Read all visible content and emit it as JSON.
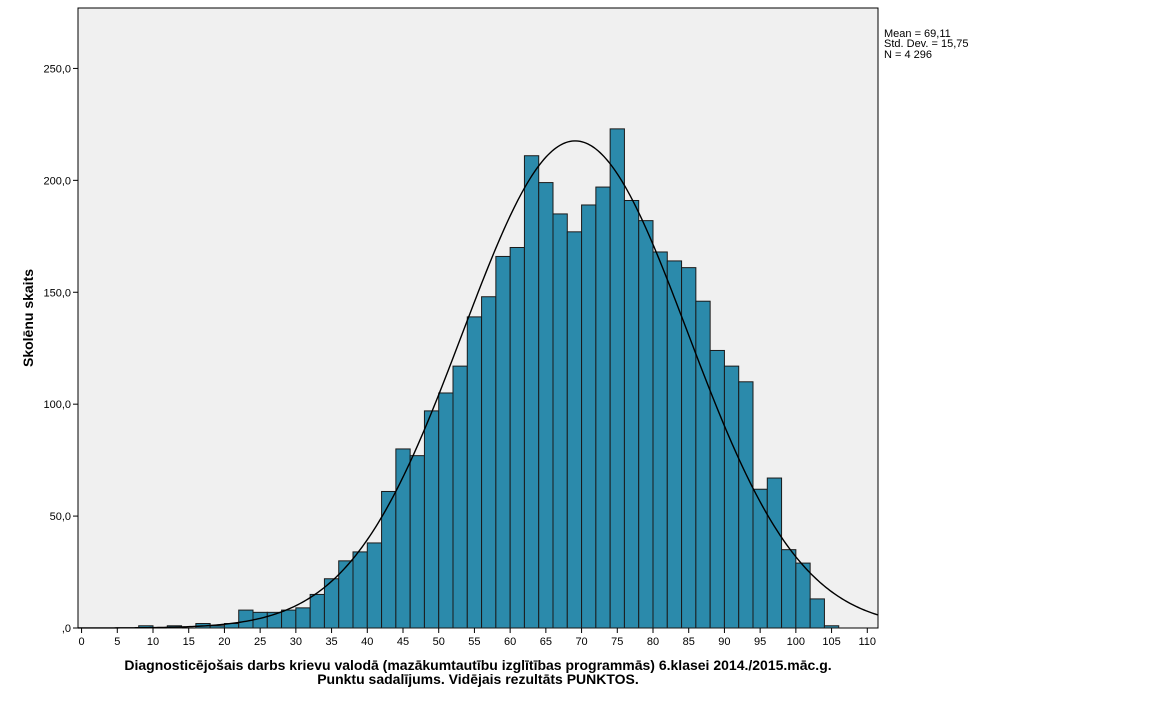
{
  "chart_data": {
    "type": "bar",
    "subtype": "histogram",
    "title": "",
    "xlabel_line1": "Diagnosticējošais darbs krievu valodā (mazākumtautību izglītības programmās) 6.klasei 2014./2015.māc.g.",
    "xlabel_line2": "Punktu sadalījums. Vidējais rezultāts PUNKTOS.",
    "ylabel": "Skolēnu skaits",
    "xlim": [
      -0.5,
      111.5
    ],
    "ylim": [
      0,
      277
    ],
    "grid": false,
    "x_ticks": [
      0,
      5,
      10,
      15,
      20,
      25,
      30,
      35,
      40,
      45,
      50,
      55,
      60,
      65,
      70,
      75,
      80,
      85,
      90,
      95,
      100,
      105,
      110
    ],
    "x_tick_labels": [
      "0",
      "5",
      "10",
      "15",
      "20",
      "25",
      "30",
      "35",
      "40",
      "45",
      "50",
      "55",
      "60",
      "65",
      "70",
      "75",
      "80",
      "85",
      "90",
      "95",
      "100",
      "105",
      "110"
    ],
    "y_ticks": [
      0,
      50,
      100,
      150,
      200,
      250
    ],
    "y_tick_labels": [
      ",0",
      "50,0",
      "100,0",
      "150,0",
      "200,0",
      "250,0"
    ],
    "bin_width": 2,
    "bin_start": 0,
    "counts": [
      0,
      0,
      0,
      0,
      1,
      0,
      1,
      0,
      2,
      1,
      2,
      8,
      7,
      7,
      8,
      9,
      15,
      22,
      30,
      34,
      38,
      61,
      80,
      77,
      97,
      105,
      117,
      139,
      148,
      166,
      170,
      211,
      199,
      185,
      177,
      189,
      197,
      223,
      191,
      182,
      168,
      164,
      161,
      146,
      124,
      117,
      110,
      62,
      67,
      35,
      29,
      13,
      1
    ],
    "normal_curve": {
      "mean": 69.11,
      "std": 15.75,
      "n": 4296
    },
    "stats_text": [
      "Mean = 69,11",
      "Std. Dev. = 15,75",
      "N = 4 296"
    ],
    "colors": {
      "bar_fill": "#2b8aab",
      "bar_stroke": "#1a1a1a",
      "plot_background": "#f0f0f0",
      "curve": "#000000",
      "axis": "#000000"
    }
  }
}
